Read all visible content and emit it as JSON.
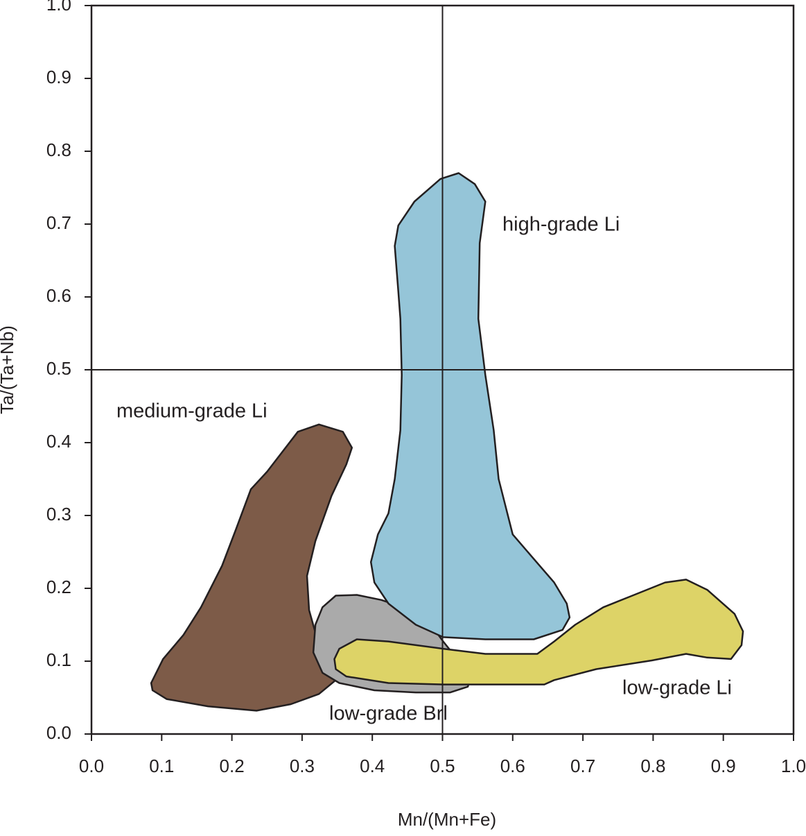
{
  "chart_data": {
    "type": "polygon",
    "x_label": "Mn/(Mn+Fe)",
    "y_label": "Ta/(Ta+Nb)",
    "xlim": [
      0,
      1
    ],
    "ylim": [
      0,
      1
    ],
    "xticks": [
      {
        "value": 0,
        "label": "0.0"
      },
      0.1,
      0.2,
      0.3,
      0.4,
      0.5,
      0.6,
      0.7,
      0.8,
      0.9,
      {
        "value": 1,
        "label": "1.0"
      }
    ],
    "yticks": [
      {
        "value": 0,
        "label": "0.0"
      },
      0.1,
      0.2,
      0.3,
      0.4,
      0.5,
      0.6,
      0.7,
      0.8,
      0.9,
      {
        "value": 1,
        "label": "1.0"
      }
    ],
    "vlines": [
      0.5
    ],
    "hlines": [
      0.5
    ],
    "series": [
      {
        "name": "medium-grade Li",
        "color": "#7d5b48",
        "x": [
          0.085,
          0.102,
          0.131,
          0.156,
          0.186,
          0.205,
          0.227,
          0.25,
          0.294,
          0.324,
          0.358,
          0.371,
          0.363,
          0.342,
          0.319,
          0.307,
          0.31,
          0.324,
          0.348,
          0.324,
          0.284,
          0.235,
          0.166,
          0.107,
          0.087
        ],
        "values": [
          0.07,
          0.103,
          0.136,
          0.174,
          0.231,
          0.279,
          0.336,
          0.36,
          0.415,
          0.425,
          0.415,
          0.393,
          0.37,
          0.327,
          0.265,
          0.217,
          0.17,
          0.122,
          0.074,
          0.055,
          0.041,
          0.032,
          0.038,
          0.048,
          0.06
        ]
      },
      {
        "name": "low-grade Brl",
        "color": "#aaaaaa",
        "x": [
          0.319,
          0.329,
          0.348,
          0.378,
          0.413,
          0.452,
          0.482,
          0.501,
          0.521,
          0.541,
          0.536,
          0.511,
          0.462,
          0.403,
          0.353,
          0.329,
          0.316
        ],
        "values": [
          0.15,
          0.174,
          0.19,
          0.191,
          0.184,
          0.171,
          0.152,
          0.127,
          0.103,
          0.079,
          0.065,
          0.057,
          0.057,
          0.06,
          0.07,
          0.084,
          0.112
        ]
      },
      {
        "name": "high-grade Li",
        "color": "#95c5d8",
        "x": [
          0.432,
          0.437,
          0.46,
          0.497,
          0.523,
          0.546,
          0.561,
          0.553,
          0.551,
          0.561,
          0.573,
          0.58,
          0.6,
          0.625,
          0.659,
          0.677,
          0.681,
          0.671,
          0.63,
          0.561,
          0.501,
          0.462,
          0.423,
          0.403,
          0.398,
          0.408,
          0.423,
          0.432,
          0.44,
          0.442,
          0.44,
          0.437
        ],
        "values": [
          0.67,
          0.698,
          0.731,
          0.762,
          0.77,
          0.755,
          0.731,
          0.674,
          0.57,
          0.493,
          0.417,
          0.35,
          0.274,
          0.246,
          0.208,
          0.179,
          0.16,
          0.143,
          0.13,
          0.13,
          0.133,
          0.15,
          0.179,
          0.208,
          0.236,
          0.274,
          0.303,
          0.35,
          0.417,
          0.493,
          0.57,
          0.608
        ]
      },
      {
        "name": "low-grade Li",
        "color": "#ddd367",
        "x": [
          0.346,
          0.353,
          0.378,
          0.423,
          0.501,
          0.561,
          0.635,
          0.659,
          0.689,
          0.729,
          0.768,
          0.817,
          0.847,
          0.877,
          0.916,
          0.928,
          0.926,
          0.911,
          0.877,
          0.847,
          0.798,
          0.719,
          0.659,
          0.645,
          0.561,
          0.501,
          0.423,
          0.363,
          0.348
        ],
        "values": [
          0.103,
          0.117,
          0.13,
          0.127,
          0.117,
          0.11,
          0.11,
          0.127,
          0.15,
          0.174,
          0.189,
          0.208,
          0.212,
          0.198,
          0.165,
          0.141,
          0.122,
          0.103,
          0.105,
          0.11,
          0.101,
          0.089,
          0.074,
          0.068,
          0.068,
          0.068,
          0.07,
          0.079,
          0.089
        ]
      }
    ]
  }
}
